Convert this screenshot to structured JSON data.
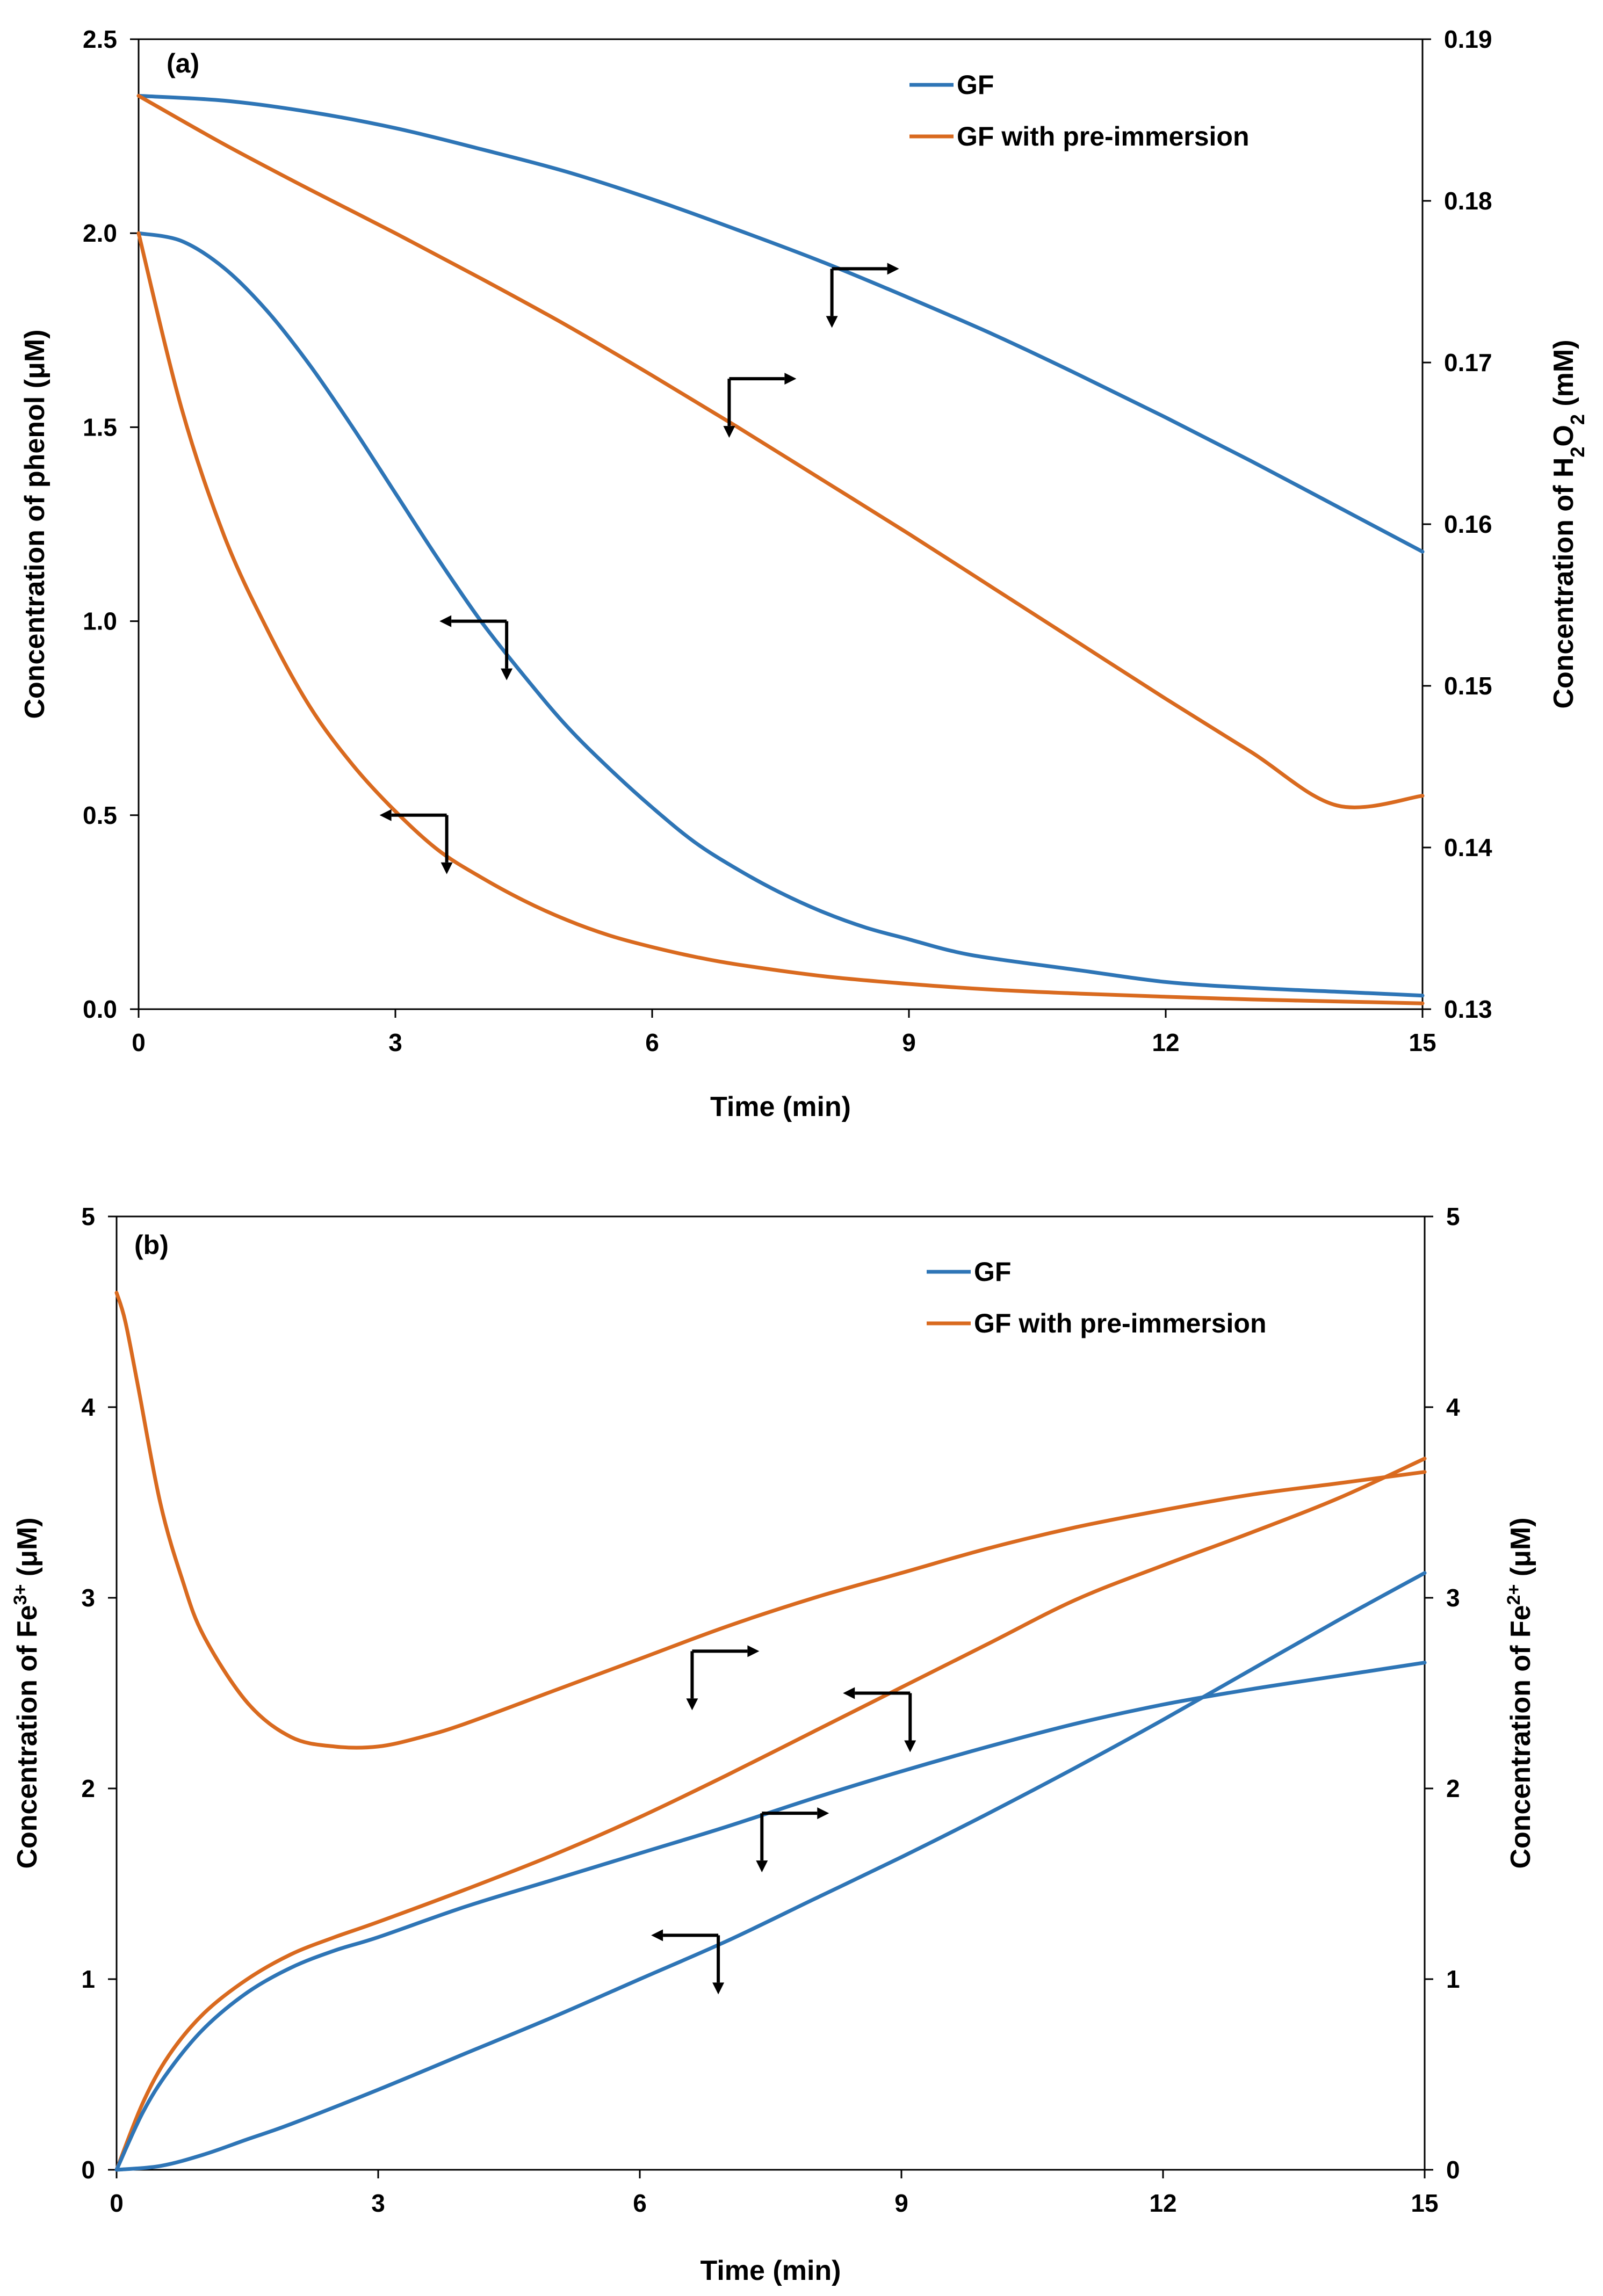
{
  "chart_data": [
    {
      "type": "line",
      "panel_label": "(a)",
      "xlabel": "Time (min)",
      "ylabel_left": "Concentration of phenol (μM)",
      "ylabel_right": {
        "prefix": "Concentration of H",
        "sub1": "2",
        "mid": "O",
        "sub2": "2",
        "suffix": " (mM)"
      },
      "xlim": [
        0,
        15
      ],
      "ylim_left": [
        0,
        2.5
      ],
      "ylim_right": [
        0.13,
        0.19
      ],
      "xticks": [
        "0",
        "3",
        "6",
        "9",
        "12",
        "15"
      ],
      "xtick_values": [
        0,
        3,
        6,
        9,
        12,
        15
      ],
      "yticks_left": [
        "0.0",
        "0.5",
        "1.0",
        "1.5",
        "2.0",
        "2.5"
      ],
      "ytick_values_left": [
        0,
        0.5,
        1.0,
        1.5,
        2.0,
        2.5
      ],
      "yticks_right": [
        "0.13",
        "0.14",
        "0.15",
        "0.16",
        "0.17",
        "0.18",
        "0.19"
      ],
      "ytick_values_right": [
        0.13,
        0.14,
        0.15,
        0.16,
        0.17,
        0.18,
        0.19
      ],
      "legend": [
        {
          "name": "GF",
          "color": "#2E75B6"
        },
        {
          "name": "GF with pre-immersion",
          "color": "#D96A1F"
        }
      ],
      "series": [
        {
          "name": "GF - phenol",
          "axis": "left",
          "color": "#2E75B6",
          "x": [
            0,
            0.5,
            1,
            1.5,
            2,
            2.5,
            3,
            3.5,
            4,
            4.5,
            5,
            5.5,
            6,
            6.5,
            7,
            7.5,
            8,
            8.5,
            9,
            9.5,
            10,
            11,
            12,
            13,
            14,
            15
          ],
          "y": [
            2.0,
            1.98,
            1.91,
            1.8,
            1.66,
            1.5,
            1.33,
            1.16,
            1.0,
            0.86,
            0.73,
            0.62,
            0.52,
            0.43,
            0.36,
            0.3,
            0.25,
            0.21,
            0.18,
            0.15,
            0.13,
            0.1,
            0.07,
            0.055,
            0.045,
            0.035
          ]
        },
        {
          "name": "GF with pre-immersion - phenol",
          "axis": "left",
          "color": "#D96A1F",
          "x": [
            0,
            0.5,
            1,
            1.5,
            2,
            2.5,
            3,
            3.5,
            4,
            4.5,
            5,
            5.5,
            6,
            6.5,
            7,
            8,
            9,
            10,
            11,
            12,
            13,
            14,
            15
          ],
          "y": [
            2.0,
            1.55,
            1.22,
            0.98,
            0.78,
            0.63,
            0.51,
            0.41,
            0.34,
            0.28,
            0.23,
            0.19,
            0.16,
            0.135,
            0.115,
            0.085,
            0.065,
            0.05,
            0.04,
            0.032,
            0.025,
            0.02,
            0.015
          ]
        },
        {
          "name": "GF - H2O2",
          "axis": "right",
          "color": "#2E75B6",
          "x": [
            0,
            1,
            2,
            3,
            4,
            5,
            6,
            7,
            8,
            9,
            10,
            11,
            12,
            13,
            14,
            15
          ],
          "y": [
            0.1865,
            0.1862,
            0.1855,
            0.1845,
            0.1832,
            0.1818,
            0.1801,
            0.1782,
            0.1762,
            0.174,
            0.1717,
            0.1692,
            0.1666,
            0.1639,
            0.1611,
            0.1583
          ]
        },
        {
          "name": "GF with pre-immersion - H2O2",
          "axis": "right",
          "color": "#D96A1F",
          "x": [
            0,
            1,
            2,
            3,
            4,
            5,
            6,
            7,
            8,
            9,
            10,
            11,
            12,
            13,
            14,
            15
          ],
          "y": [
            0.1865,
            0.1835,
            0.1807,
            0.178,
            0.1752,
            0.1723,
            0.1692,
            0.166,
            0.1627,
            0.1594,
            0.156,
            0.1526,
            0.1492,
            0.1459,
            0.1426,
            0.1432
          ]
        }
      ],
      "indicators": [
        {
          "x": 8.1,
          "y": 0.1758,
          "axis": "right",
          "dir": "right"
        },
        {
          "x": 6.9,
          "y": 0.169,
          "axis": "right",
          "dir": "right"
        },
        {
          "x": 4.3,
          "y": 1.0,
          "axis": "left",
          "dir": "left"
        },
        {
          "x": 3.6,
          "y": 0.5,
          "axis": "left",
          "dir": "left"
        }
      ]
    },
    {
      "type": "line",
      "panel_label": "(b)",
      "xlabel": "Time (min)",
      "ylabel_left": {
        "prefix": "Concentration of Fe",
        "sup": "3+",
        "suffix": " (μM)"
      },
      "ylabel_right": {
        "prefix": "Concentration of Fe",
        "sup": "2+",
        "suffix": " (μM)"
      },
      "xlim": [
        0,
        15
      ],
      "ylim_left": [
        0,
        5
      ],
      "ylim_right": [
        0,
        5
      ],
      "xticks": [
        "0",
        "3",
        "6",
        "9",
        "12",
        "15"
      ],
      "xtick_values": [
        0,
        3,
        6,
        9,
        12,
        15
      ],
      "yticks_left": [
        "0",
        "1",
        "2",
        "3",
        "4",
        "5"
      ],
      "ytick_values_left": [
        0,
        1,
        2,
        3,
        4,
        5
      ],
      "yticks_right": [
        "0",
        "1",
        "2",
        "3",
        "4",
        "5"
      ],
      "ytick_values_right": [
        0,
        1,
        2,
        3,
        4,
        5
      ],
      "legend": [
        {
          "name": "GF",
          "color": "#2E75B6"
        },
        {
          "name": "GF with pre-immersion",
          "color": "#D96A1F"
        }
      ],
      "series": [
        {
          "name": "GF - Fe3+",
          "axis": "left",
          "color": "#2E75B6",
          "x": [
            0,
            0.5,
            1,
            1.5,
            2,
            3,
            4,
            5,
            6,
            7,
            8,
            9,
            10,
            11,
            12,
            13,
            14,
            15
          ],
          "y": [
            0,
            0.02,
            0.08,
            0.16,
            0.24,
            0.42,
            0.61,
            0.8,
            1.0,
            1.2,
            1.42,
            1.64,
            1.87,
            2.11,
            2.36,
            2.62,
            2.88,
            3.13
          ]
        },
        {
          "name": "GF with pre-immersion - Fe3+",
          "axis": "left",
          "color": "#D96A1F",
          "x": [
            0,
            0.3,
            0.6,
            1,
            1.5,
            2,
            2.5,
            3,
            4,
            5,
            6,
            7,
            8,
            9,
            10,
            11,
            12,
            13,
            14,
            15
          ],
          "y": [
            0,
            0.35,
            0.6,
            0.82,
            1.0,
            1.13,
            1.22,
            1.3,
            1.47,
            1.65,
            1.85,
            2.07,
            2.3,
            2.53,
            2.76,
            2.99,
            3.17,
            3.34,
            3.52,
            3.73
          ]
        },
        {
          "name": "GF - Fe2+",
          "axis": "right",
          "color": "#2E75B6",
          "x": [
            0,
            0.3,
            0.6,
            1,
            1.5,
            2,
            2.5,
            3,
            4,
            5,
            6,
            7,
            8,
            9,
            10,
            11,
            12,
            13,
            14,
            15
          ],
          "y": [
            0,
            0.3,
            0.52,
            0.74,
            0.93,
            1.06,
            1.15,
            1.22,
            1.38,
            1.52,
            1.66,
            1.8,
            1.95,
            2.09,
            2.22,
            2.34,
            2.44,
            2.52,
            2.59,
            2.66
          ]
        },
        {
          "name": "GF with pre-immersion - Fe2+",
          "axis": "right",
          "color": "#D96A1F",
          "x": [
            0,
            0.1,
            0.25,
            0.5,
            0.75,
            1,
            1.5,
            2,
            2.5,
            3,
            3.5,
            4,
            5,
            6,
            7,
            8,
            9,
            10,
            11,
            12,
            13,
            14,
            15
          ],
          "y": [
            4.6,
            4.45,
            4.1,
            3.5,
            3.1,
            2.8,
            2.45,
            2.27,
            2.22,
            2.22,
            2.27,
            2.34,
            2.51,
            2.68,
            2.85,
            3.0,
            3.13,
            3.26,
            3.37,
            3.46,
            3.54,
            3.6,
            3.66
          ]
        }
      ],
      "indicators": [
        {
          "x": 6.6,
          "y": 2.72,
          "axis": "right",
          "dir": "right"
        },
        {
          "x": 9.1,
          "y": 2.5,
          "axis": "left",
          "dir": "left"
        },
        {
          "x": 7.4,
          "y": 1.87,
          "axis": "right",
          "dir": "right"
        },
        {
          "x": 6.9,
          "y": 1.23,
          "axis": "left",
          "dir": "left"
        }
      ]
    }
  ]
}
